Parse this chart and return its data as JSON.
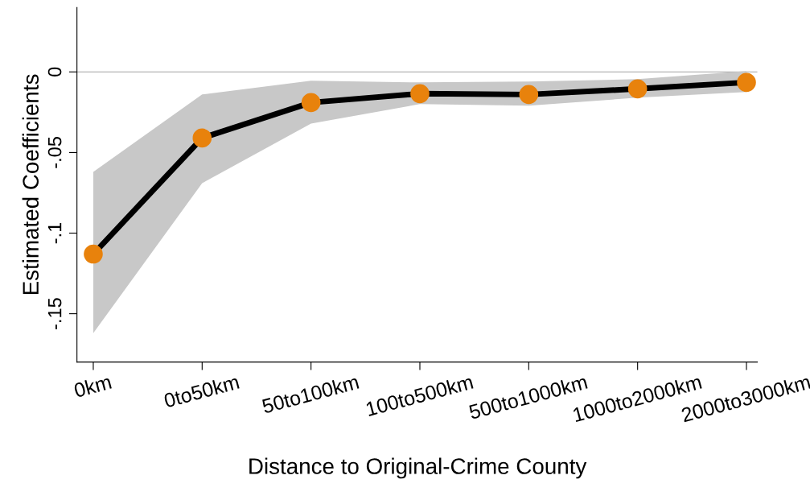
{
  "chart_data": {
    "type": "line",
    "xlabel": "Distance to Original-Crime County",
    "ylabel": "Estimated Coefficients",
    "categories": [
      "0km",
      "0to50km",
      "50to100km",
      "100to500km",
      "500to1000km",
      "1000to2000km",
      "2000to3000km"
    ],
    "series": [
      {
        "color": "#000000",
        "values": [
          -0.113,
          -0.041,
          -0.019,
          -0.0135,
          -0.014,
          -0.0105,
          -0.0065
        ],
        "lower": [
          -0.162,
          -0.069,
          -0.032,
          -0.02,
          -0.021,
          -0.016,
          -0.0125
        ],
        "upper": [
          -0.062,
          -0.014,
          -0.0055,
          -0.0065,
          -0.006,
          -0.0045,
          0.0005
        ]
      }
    ],
    "marker": "circle",
    "line_style": "solid",
    "grid": false,
    "ylim": [
      -0.18,
      0.04
    ],
    "yticks": [
      {
        "value": -0.15,
        "label": "-.15"
      },
      {
        "value": -0.1,
        "label": "-.1"
      },
      {
        "value": -0.05,
        "label": "-.05"
      },
      0
    ],
    "ref_lines": [
      {
        "axis": "y",
        "value": 0,
        "color": "#b4b4b4"
      }
    ]
  }
}
